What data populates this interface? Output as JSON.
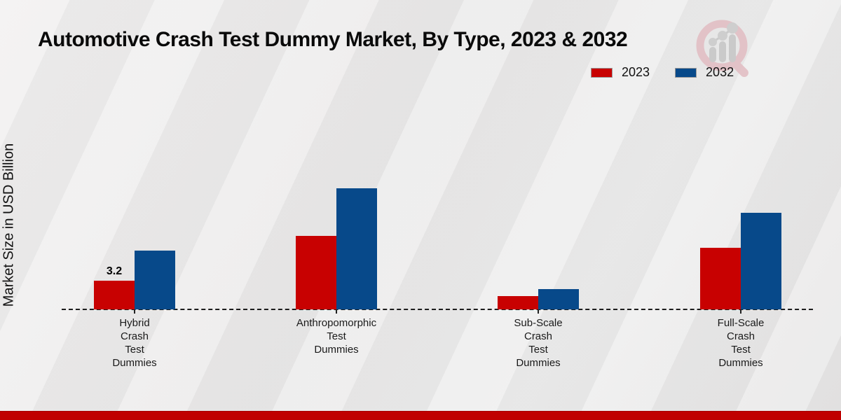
{
  "title": "Automotive Crash Test Dummy Market, By Type, 2023 & 2032",
  "y_axis_label": "Market Size in USD Billion",
  "legend": {
    "items": [
      {
        "label": "2023",
        "color": "#c80101"
      },
      {
        "label": "2032",
        "color": "#07498a"
      }
    ]
  },
  "colors": {
    "series_2023": "#c80101",
    "series_2032": "#07498a",
    "footer_band": "#c00000",
    "background": "#eae9e9",
    "baseline": "#1c1c1c"
  },
  "watermark": {
    "name": "market-research-magnifier-logo"
  },
  "chart_data": {
    "type": "bar",
    "title": "Automotive Crash Test Dummy Market, By Type, 2023 & 2032",
    "xlabel": "",
    "ylabel": "Market Size in USD Billion",
    "categories": [
      "Hybrid Crash Test Dummies",
      "Anthropomorphic Test Dummies",
      "Sub-Scale Crash Test Dummies",
      "Full-Scale Crash Test Dummies"
    ],
    "category_label_lines": [
      [
        "Hybrid",
        "Crash",
        "Test",
        "Dummies"
      ],
      [
        "Anthropomorphic",
        "Test",
        "Dummies"
      ],
      [
        "Sub-Scale",
        "Crash",
        "Test",
        "Dummies"
      ],
      [
        "Full-Scale",
        "Crash",
        "Test",
        "Dummies"
      ]
    ],
    "series": [
      {
        "name": "2023",
        "color": "#c80101",
        "values": [
          3.2,
          8.2,
          1.5,
          6.9
        ]
      },
      {
        "name": "2032",
        "color": "#07498a",
        "values": [
          6.6,
          13.5,
          2.3,
          10.8
        ]
      }
    ],
    "bar_labels": [
      {
        "series_index": 0,
        "category_index": 0,
        "text": "3.2"
      }
    ],
    "ylim": [
      0,
      14
    ],
    "grid": false,
    "legend_position": "top-right",
    "baseline_style": "dashed"
  }
}
